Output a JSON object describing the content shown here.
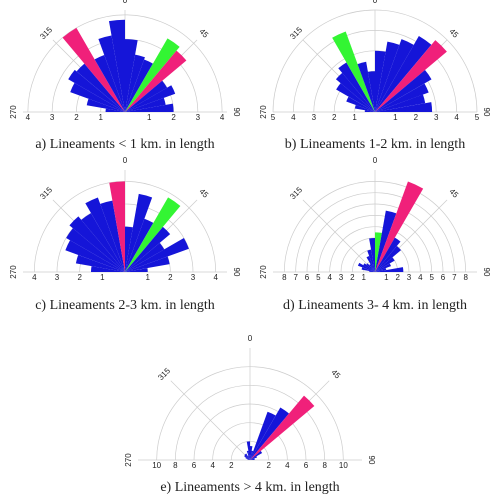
{
  "chart_data": [
    {
      "type": "rose",
      "title": "a)  Lineaments < 1 km. in length",
      "rlim": [
        0,
        4.2
      ],
      "rticks": [
        1,
        2,
        3,
        4
      ],
      "thetaticks": [
        270,
        315,
        0,
        45,
        90
      ],
      "binwidth": 10,
      "theta": [
        275,
        285,
        295,
        305,
        315,
        325,
        335,
        345,
        355,
        5,
        15,
        25,
        35,
        45,
        55,
        65,
        75,
        85
      ],
      "values": [
        0.8,
        1.6,
        2.4,
        2.7,
        2.6,
        4.0,
        2.5,
        3.2,
        3.8,
        3.0,
        2.4,
        2.3,
        3.5,
        3.3,
        2.0,
        2.2,
        1.7,
        2.0
      ],
      "colors": [
        "#1515d8",
        "#1515d8",
        "#1515d8",
        "#1515d8",
        "#1515d8",
        "#f0207a",
        "#1515d8",
        "#1515d8",
        "#1515d8",
        "#1515d8",
        "#1515d8",
        "#1515d8",
        "#33f533",
        "#f0207a",
        "#1515d8",
        "#1515d8",
        "#1515d8",
        "#1515d8"
      ]
    },
    {
      "type": "rose",
      "title": "b) Lineaments 1-2  km. in length",
      "rlim": [
        0,
        5
      ],
      "rticks": [
        1,
        2,
        3,
        4,
        5
      ],
      "thetaticks": [
        270,
        315,
        0,
        45,
        90
      ],
      "binwidth": 10,
      "theta": [
        275,
        285,
        295,
        305,
        315,
        325,
        335,
        345,
        355,
        5,
        15,
        25,
        35,
        45,
        55,
        65,
        75,
        85
      ],
      "values": [
        0.5,
        1.0,
        1.5,
        2.2,
        2.5,
        2.8,
        4.2,
        2.5,
        2.0,
        3.0,
        3.5,
        3.8,
        4.3,
        4.6,
        3.2,
        2.8,
        2.5,
        2.8
      ],
      "colors": [
        "#1515d8",
        "#1515d8",
        "#1515d8",
        "#1515d8",
        "#1515d8",
        "#1515d8",
        "#33f533",
        "#1515d8",
        "#1515d8",
        "#1515d8",
        "#1515d8",
        "#1515d8",
        "#1515d8",
        "#f0207a",
        "#1515d8",
        "#1515d8",
        "#1515d8",
        "#1515d8"
      ]
    },
    {
      "type": "rose",
      "title": "c)  Lineaments 2-3  km. in length",
      "rlim": [
        0,
        4.5
      ],
      "rticks": [
        1,
        2,
        3,
        4
      ],
      "thetaticks": [
        270,
        315,
        0,
        45,
        90
      ],
      "binwidth": 10,
      "theta": [
        275,
        285,
        295,
        305,
        315,
        325,
        335,
        345,
        355,
        5,
        15,
        25,
        35,
        45,
        55,
        65,
        75,
        85
      ],
      "values": [
        1.5,
        2.2,
        2.8,
        3.0,
        3.2,
        3.0,
        3.5,
        3.2,
        4.0,
        2.0,
        3.5,
        2.5,
        3.8,
        2.6,
        2.0,
        3.0,
        2.0,
        1.0
      ],
      "colors": [
        "#1515d8",
        "#1515d8",
        "#1515d8",
        "#1515d8",
        "#1515d8",
        "#1515d8",
        "#1515d8",
        "#1515d8",
        "#f0207a",
        "#1515d8",
        "#1515d8",
        "#1515d8",
        "#33f533",
        "#1515d8",
        "#1515d8",
        "#1515d8",
        "#1515d8",
        "#1515d8"
      ]
    },
    {
      "type": "rose",
      "title": "d) Lineaments 3- 4  km. in length",
      "rlim": [
        0,
        9
      ],
      "rticks": [
        1,
        2,
        3,
        4,
        5,
        6,
        7,
        8
      ],
      "thetaticks": [
        270,
        315,
        0,
        45,
        90
      ],
      "binwidth": 10,
      "theta": [
        275,
        285,
        295,
        305,
        315,
        325,
        335,
        345,
        355,
        5,
        15,
        25,
        35,
        45,
        55,
        65,
        75,
        85
      ],
      "values": [
        0.5,
        1.2,
        1.6,
        1.2,
        1.0,
        0.8,
        1.5,
        2.0,
        3.0,
        3.5,
        5.5,
        8.5,
        3.5,
        3.0,
        2.0,
        1.5,
        1.0,
        2.5
      ],
      "colors": [
        "#1515d8",
        "#1515d8",
        "#1515d8",
        "#1515d8",
        "#1515d8",
        "#1515d8",
        "#1515d8",
        "#1515d8",
        "#1515d8",
        "#33f533",
        "#1515d8",
        "#f0207a",
        "#1515d8",
        "#1515d8",
        "#1515d8",
        "#1515d8",
        "#1515d8",
        "#1515d8"
      ]
    },
    {
      "type": "rose",
      "title": "e)  Lineaments > 4  km. in length",
      "rlim": [
        0,
        12
      ],
      "rticks": [
        2,
        4,
        6,
        8,
        10
      ],
      "thetaticks": [
        270,
        315,
        0,
        45,
        90
      ],
      "binwidth": 10,
      "theta": [
        275,
        285,
        295,
        305,
        315,
        325,
        335,
        345,
        355,
        5,
        15,
        25,
        35,
        45,
        55,
        65,
        75,
        85
      ],
      "values": [
        0.2,
        0.3,
        0.5,
        0.7,
        0.8,
        0.8,
        0.5,
        1.0,
        2.0,
        1.5,
        1.0,
        5.5,
        6.5,
        9.0,
        1.5,
        0.8,
        0.5,
        0.5
      ],
      "colors": [
        "#1515d8",
        "#1515d8",
        "#1515d8",
        "#1515d8",
        "#1515d8",
        "#1515d8",
        "#1515d8",
        "#1515d8",
        "#1515d8",
        "#1515d8",
        "#1515d8",
        "#1515d8",
        "#1515d8",
        "#f0207a",
        "#1515d8",
        "#1515d8",
        "#1515d8",
        "#1515d8"
      ]
    }
  ]
}
